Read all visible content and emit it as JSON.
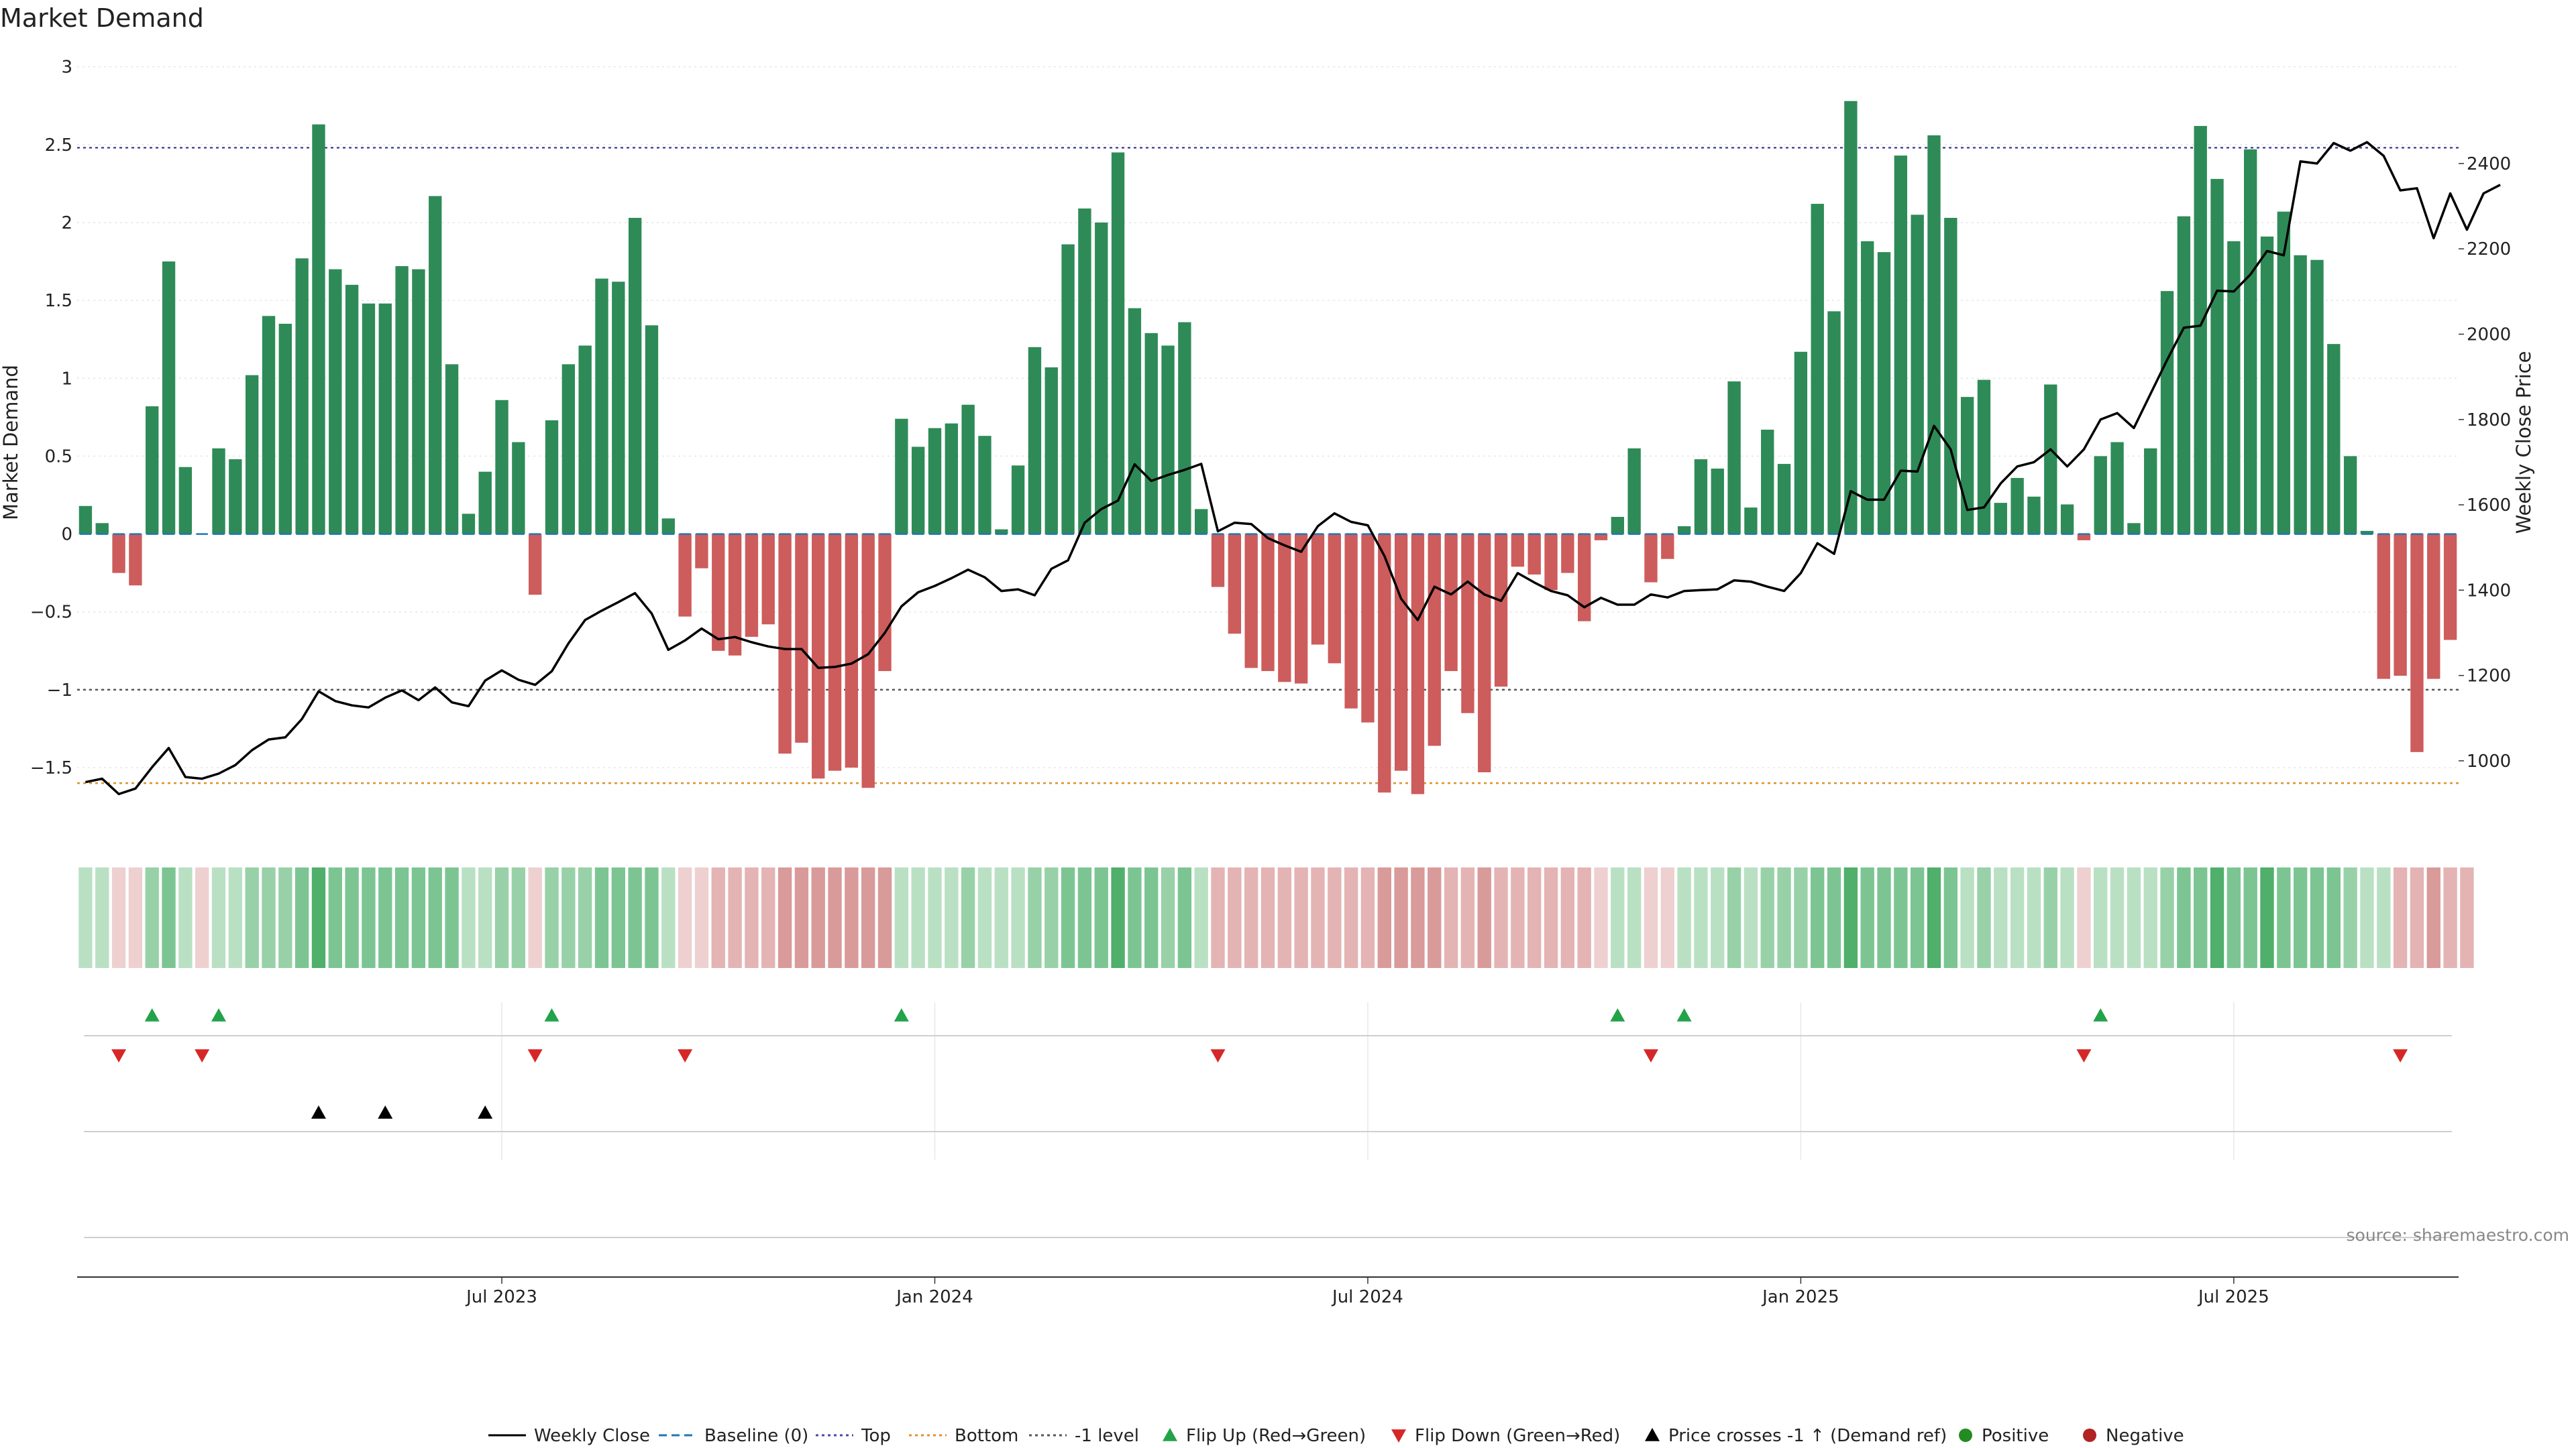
{
  "chart_data": {
    "type": "bar+line",
    "title": "Market Demand",
    "ylabel_left": "Market Demand",
    "ylabel_right": "Weekly Close Price",
    "ylim_left": [
      -1.9,
      3.05
    ],
    "ylim_right": [
      838,
      2645
    ],
    "yticks_left": [
      3,
      2.5,
      2,
      1.5,
      1,
      0.5,
      0,
      -0.5,
      -1,
      -1.5
    ],
    "ytick_labels_left": [
      "3",
      "2.5",
      "2",
      "1.5",
      "1",
      "0.5",
      "0",
      "−0.5",
      "−1",
      "−1.5"
    ],
    "yticks_right": [
      2400,
      2200,
      2000,
      1800,
      1600,
      1400,
      1200,
      1000
    ],
    "ytick_labels_right": [
      "2400",
      "2200",
      "2000",
      "1800",
      "1600",
      "1400",
      "1200",
      "1000"
    ],
    "reference_lines": {
      "top": 2.48,
      "minus_one": -1.0,
      "bottom": -1.6
    },
    "x_start_week": "2023-01-06",
    "x_ticks": [
      {
        "week": 25,
        "label": "Jul 2023"
      },
      {
        "week": 51,
        "label": "Jan 2024"
      },
      {
        "week": 77,
        "label": "Jul 2024"
      },
      {
        "week": 103,
        "label": "Jan 2025"
      },
      {
        "week": 129,
        "label": "Jul 2025"
      }
    ],
    "demand": [
      0.18,
      0.07,
      -0.25,
      -0.33,
      0.82,
      1.75,
      0.43,
      0,
      0.55,
      0.48,
      1.02,
      1.4,
      1.35,
      1.77,
      2.63,
      1.7,
      1.6,
      1.48,
      1.48,
      1.72,
      1.7,
      2.17,
      1.09,
      0.13,
      0.4,
      0.86,
      0.59,
      -0.39,
      0.73,
      1.09,
      1.21,
      1.64,
      1.62,
      2.03,
      1.34,
      0.1,
      -0.53,
      -0.22,
      -0.75,
      -0.78,
      -0.66,
      -0.58,
      -1.41,
      -1.34,
      -1.57,
      -1.52,
      -1.5,
      -1.63,
      -0.88,
      0.74,
      0.56,
      0.68,
      0.71,
      0.83,
      0.63,
      0.03,
      0.44,
      1.2,
      1.07,
      1.86,
      2.09,
      2.0,
      2.45,
      1.45,
      1.29,
      1.21,
      1.36,
      0.16,
      -0.34,
      -0.64,
      -0.86,
      -0.88,
      -0.95,
      -0.96,
      -0.71,
      -0.83,
      -1.12,
      -1.21,
      -1.66,
      -1.52,
      -1.67,
      -1.36,
      -0.88,
      -1.15,
      -1.53,
      -0.98,
      -0.21,
      -0.26,
      -0.36,
      -0.25,
      -0.56,
      -0.04,
      0.11,
      0.55,
      -0.31,
      -0.16,
      0.05,
      0.48,
      0.42,
      0.98,
      0.17,
      0.67,
      0.45,
      1.17,
      2.12,
      1.43,
      2.78,
      1.88,
      1.81,
      2.43,
      2.05,
      2.56,
      2.03,
      0.88,
      0.99,
      0.2,
      0.36,
      0.24,
      0.96,
      0.19,
      -0.04,
      0.5,
      0.59,
      0.07,
      0.55,
      1.56,
      2.04,
      2.62,
      2.28,
      1.88,
      2.47,
      1.91,
      2.07,
      1.79,
      1.76,
      1.22,
      0.5,
      0.02,
      -0.93,
      -0.91,
      -1.4,
      -0.93,
      -0.68
    ],
    "close": [
      950,
      958,
      922,
      935,
      985,
      1030,
      962,
      958,
      970,
      990,
      1025,
      1050,
      1055,
      1098,
      1163,
      1140,
      1130,
      1125,
      1148,
      1165,
      1142,
      1172,
      1137,
      1128,
      1188,
      1212,
      1190,
      1178,
      1210,
      1275,
      1330,
      1352,
      1372,
      1393,
      1345,
      1260,
      1282,
      1310,
      1285,
      1290,
      1278,
      1268,
      1262,
      1262,
      1218,
      1220,
      1228,
      1250,
      1300,
      1362,
      1395,
      1410,
      1428,
      1448,
      1430,
      1398,
      1402,
      1388,
      1450,
      1470,
      1558,
      1590,
      1610,
      1695,
      1656,
      1670,
      1682,
      1696,
      1538,
      1558,
      1555,
      1522,
      1505,
      1490,
      1550,
      1580,
      1560,
      1552,
      1480,
      1380,
      1330,
      1408,
      1390,
      1420,
      1390,
      1375,
      1440,
      1418,
      1398,
      1388,
      1360,
      1382,
      1366,
      1366,
      1390,
      1383,
      1398,
      1400,
      1402,
      1423,
      1420,
      1408,
      1398,
      1440,
      1510,
      1485,
      1632,
      1612,
      1612,
      1680,
      1678,
      1785,
      1730,
      1588,
      1594,
      1650,
      1690,
      1700,
      1730,
      1690,
      1730,
      1800,
      1815,
      1780,
      1860,
      1940,
      2015,
      2020,
      2102,
      2100,
      2140,
      2195,
      2185,
      2405,
      2400,
      2448,
      2430,
      2450,
      2418,
      2337,
      2342,
      2225,
      2330,
      2245,
      2330,
      2350
    ],
    "shade_levels": [
      1,
      1,
      -1,
      -1,
      2,
      3,
      1,
      -1,
      1,
      1,
      2,
      2,
      2,
      3,
      4,
      3,
      3,
      3,
      3,
      3,
      3,
      3,
      3,
      1,
      1,
      2,
      2,
      -1,
      2,
      2,
      2,
      3,
      3,
      3,
      3,
      1,
      -1,
      -1,
      -2,
      -2,
      -2,
      -2,
      -3,
      -3,
      -3,
      -3,
      -3,
      -3,
      -3,
      1,
      1,
      1,
      1,
      2,
      1,
      1,
      1,
      2,
      2,
      3,
      3,
      3,
      4,
      3,
      3,
      2,
      3,
      1,
      -2,
      -2,
      -2,
      -2,
      -2,
      -2,
      -2,
      -2,
      -2,
      -2,
      -3,
      -3,
      -3,
      -3,
      -2,
      -2,
      -3,
      -2,
      -2,
      -2,
      -2,
      -2,
      -2,
      -1,
      1,
      1,
      -1,
      -1,
      1,
      1,
      1,
      2,
      1,
      2,
      2,
      2,
      3,
      3,
      4,
      3,
      3,
      3,
      3,
      4,
      3,
      1,
      2,
      1,
      1,
      1,
      2,
      1,
      -1,
      1,
      1,
      1,
      1,
      2,
      3,
      3,
      4,
      3,
      3,
      4,
      3,
      3,
      3,
      3,
      2,
      1,
      1,
      -2,
      -2,
      -3,
      -2,
      -2
    ],
    "flip_up_weeks": [
      4,
      8,
      28,
      49,
      92,
      96,
      121
    ],
    "flip_down_weeks": [
      2,
      7,
      27,
      36,
      68,
      94,
      120,
      139
    ],
    "price_cross_weeks": [
      14,
      18,
      24
    ],
    "colors": {
      "bar_positive": "#2e8b57",
      "bar_negative": "#cd5c5c",
      "close_line": "#000000",
      "baseline": "#1f77b4",
      "top_line": "#4a4aa0",
      "bottom_line": "#e0902a",
      "minus_one_line": "#555555",
      "flip_up": "#22a34a",
      "flip_down": "#d62728",
      "price_cross": "#000000",
      "positive_dot": "#228b22",
      "negative_dot": "#b22222"
    },
    "legend": [
      {
        "label": "Weekly Close",
        "kind": "line-solid"
      },
      {
        "label": "Baseline (0)",
        "kind": "line-dash-blue"
      },
      {
        "label": "Top",
        "kind": "line-dot-purple"
      },
      {
        "label": "Bottom",
        "kind": "line-dot-orange"
      },
      {
        "label": "-1 level",
        "kind": "line-dot-gray"
      },
      {
        "label": "Flip Up (Red→Green)",
        "kind": "tri-up-green"
      },
      {
        "label": "Flip Down (Green→Red)",
        "kind": "tri-down-red"
      },
      {
        "label": "Price crosses -1 ↑ (Demand ref)",
        "kind": "tri-up-black"
      },
      {
        "label": "Positive",
        "kind": "dot-green"
      },
      {
        "label": "Negative",
        "kind": "dot-red"
      }
    ],
    "source": "source: sharemaestro.com"
  }
}
